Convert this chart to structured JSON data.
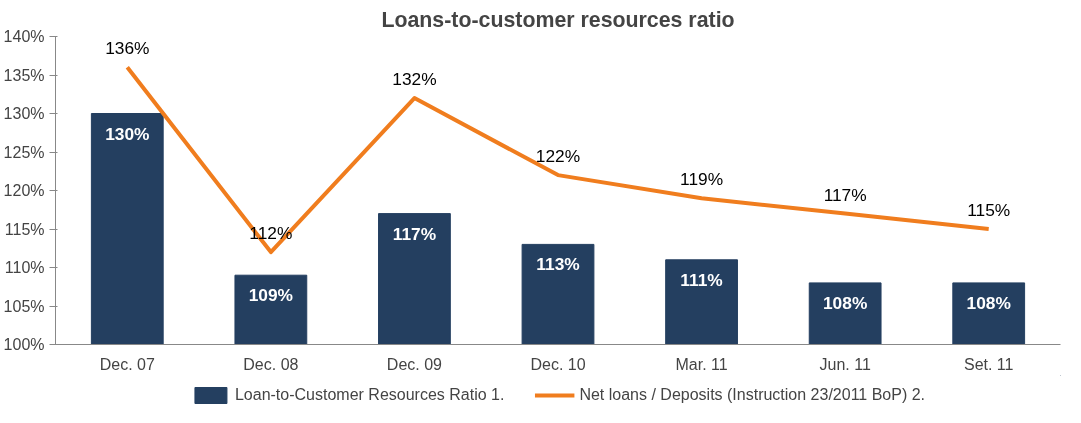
{
  "chart_data": {
    "type": "bar",
    "title": "Loans-to-customer resources ratio",
    "categories": [
      "Dec. 07",
      "Dec. 08",
      "Dec. 09",
      "Dec. 10",
      "Mar. 11",
      "Jun. 11",
      "Set. 11"
    ],
    "series": [
      {
        "name": "Loan-to-Customer Resources Ratio 1.",
        "color": "#243f60",
        "values": [
          130,
          109,
          117,
          113,
          111,
          108,
          108
        ],
        "value_labels": [
          "130%",
          "109%",
          "117%",
          "113%",
          "111%",
          "108%",
          "108%"
        ]
      },
      {
        "name": "Net loans / Deposits (Instruction 23/2011 BoP) 2.",
        "type": "line",
        "color": "#f07d1e",
        "values": [
          136,
          112,
          132,
          122,
          119,
          117,
          115
        ],
        "value_labels": [
          "136%",
          "112%",
          "132%",
          "122%",
          "119%",
          "117%",
          "115%"
        ]
      }
    ],
    "ylim": [
      100,
      140
    ],
    "yticks": [
      {
        "value": 100,
        "label": "100%"
      },
      {
        "value": 105,
        "label": "105%"
      },
      {
        "value": 110,
        "label": "110%"
      },
      {
        "value": 115,
        "label": "115%"
      },
      {
        "value": 120,
        "label": "120%"
      },
      {
        "value": 125,
        "label": "125%"
      },
      {
        "value": 130,
        "label": "130%"
      },
      {
        "value": 135,
        "label": "135%"
      },
      {
        "value": 140,
        "label": "140%"
      }
    ],
    "grid": false,
    "legend": "bottom",
    "marker": "none",
    "line_style": "solid"
  }
}
